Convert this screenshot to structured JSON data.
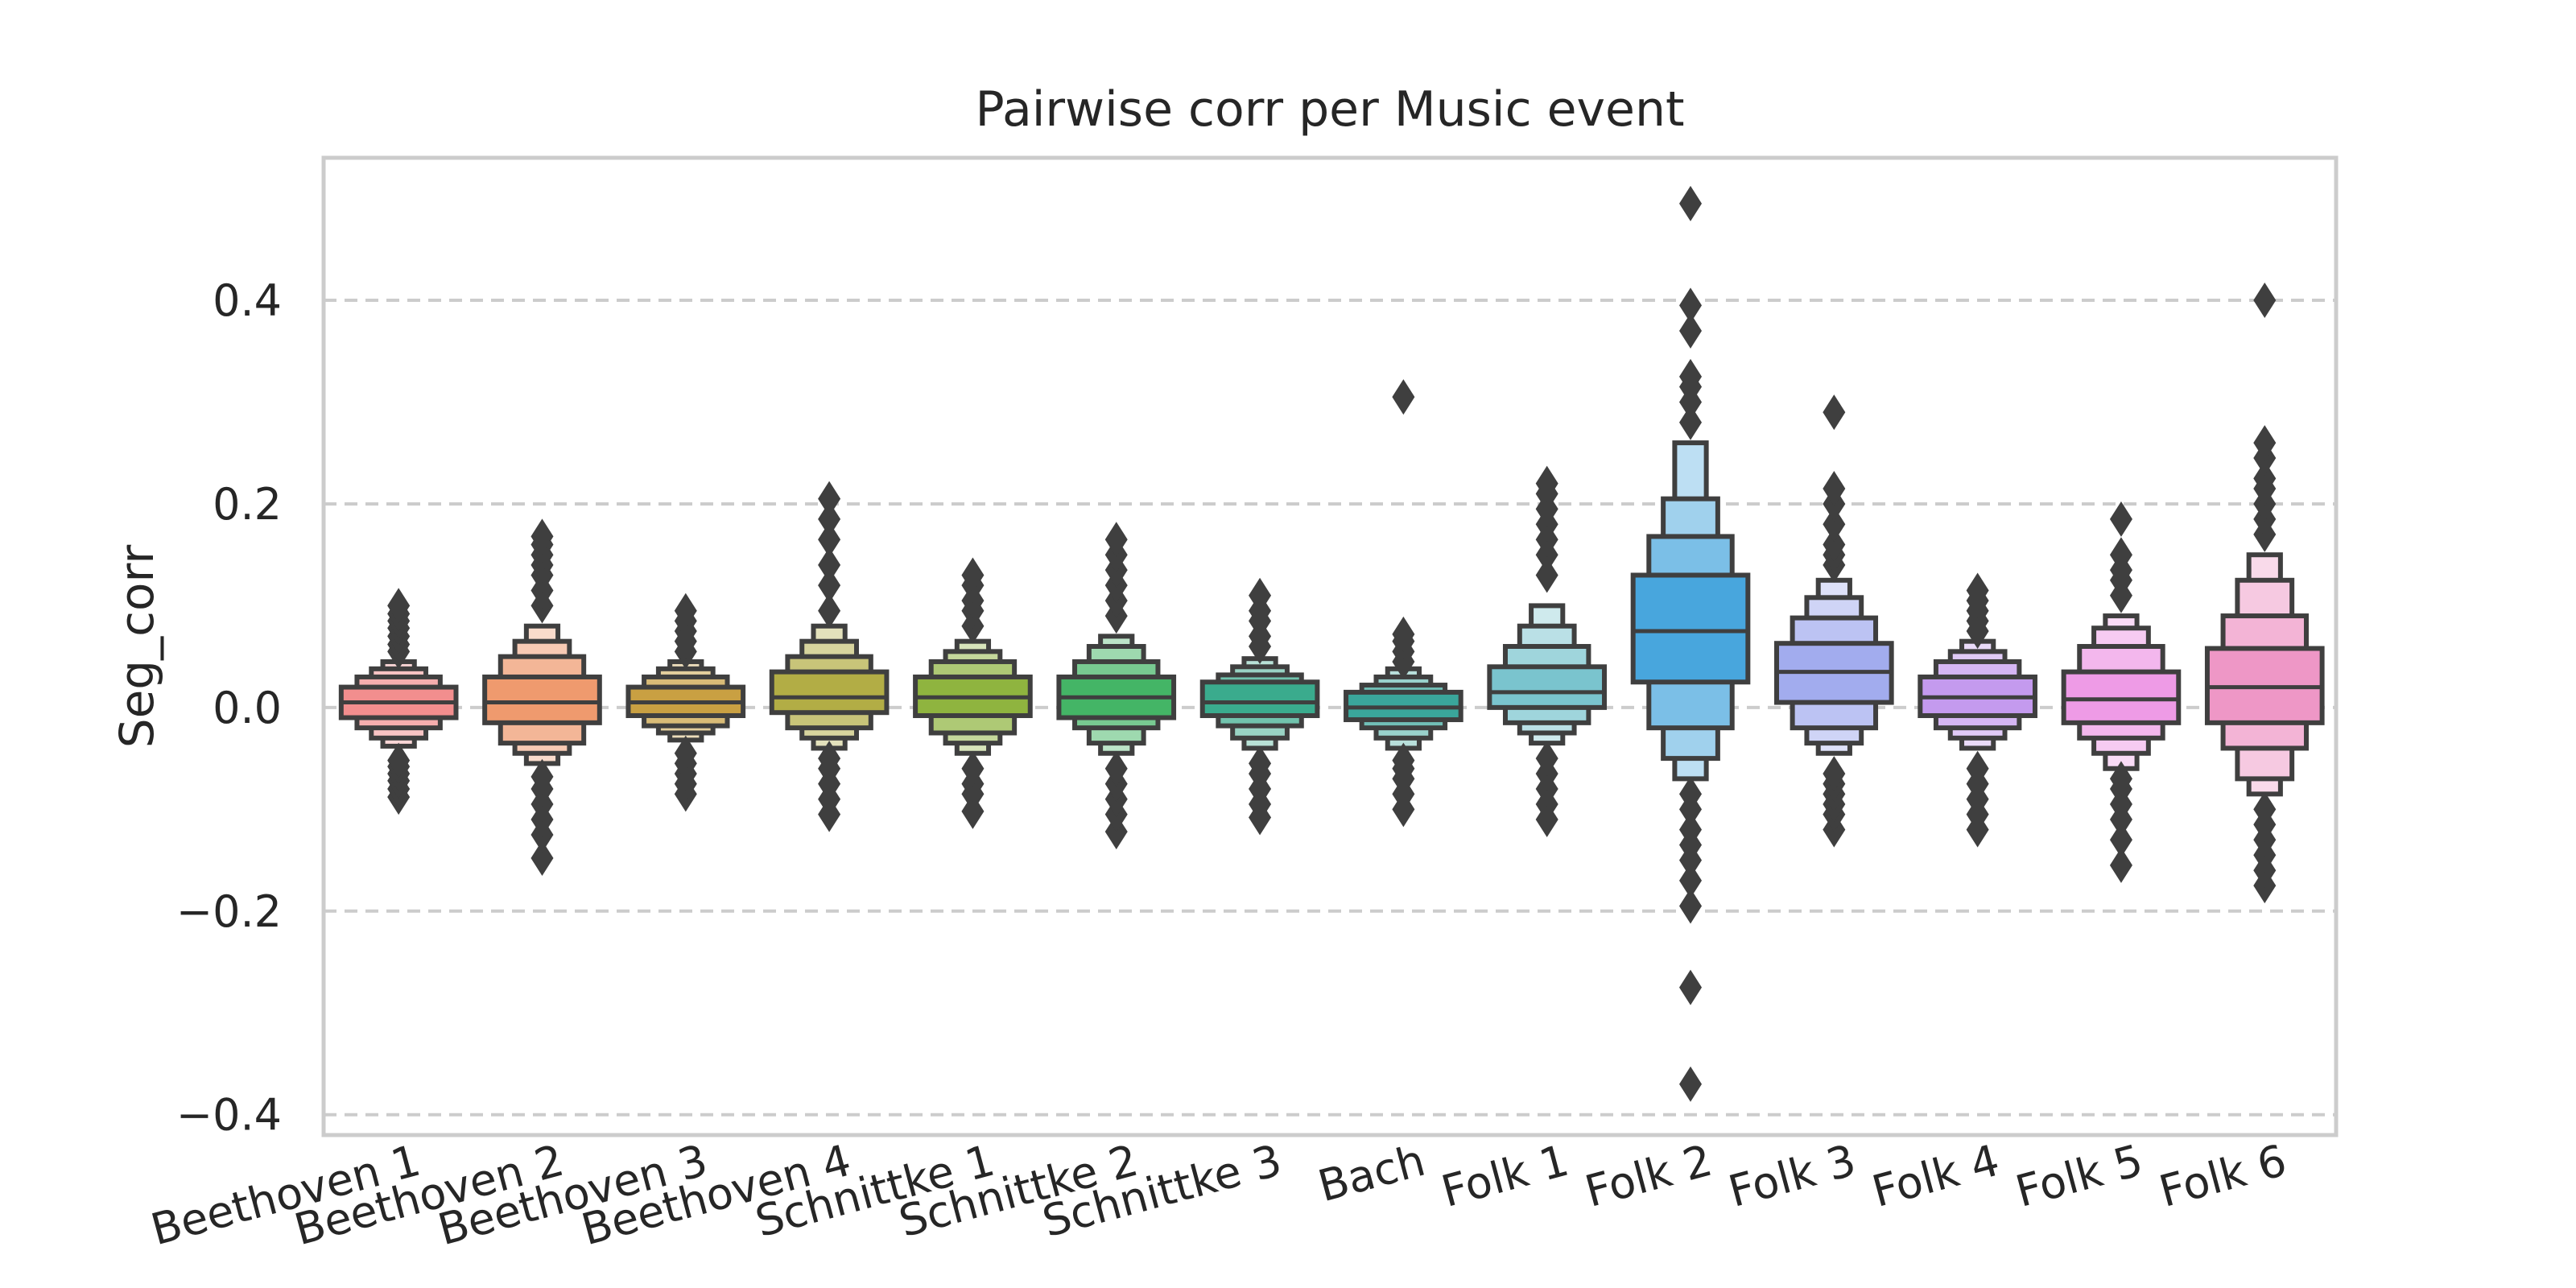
{
  "chart_data": {
    "type": "boxen",
    "title": "Pairwise corr per Music event",
    "xlabel": "",
    "ylabel": "Seg_corr",
    "ylim": [
      -0.42,
      0.54
    ],
    "yticks": [
      0.4,
      0.2,
      0.0,
      -0.2,
      -0.4
    ],
    "ytick_labels": [
      "0.4",
      "0.2",
      "0.0",
      "−0.2",
      "−0.4"
    ],
    "grid": "horizontal-dashed",
    "categories": [
      "Beethoven 1",
      "Beethoven 2",
      "Beethoven 3",
      "Beethoven 4",
      "Schnittke 1",
      "Schnittke 2",
      "Schnittke 3",
      "Bach",
      "Folk 1",
      "Folk 2",
      "Folk 3",
      "Folk 4",
      "Folk 5",
      "Folk 6"
    ],
    "colors": [
      "#f28e8e",
      "#ef9a6e",
      "#c9a042",
      "#b2ad45",
      "#8fb43f",
      "#44b566",
      "#3aab8d",
      "#3aa69b",
      "#7ac4ce",
      "#48a6dd",
      "#a2acee",
      "#c49aee",
      "#ee9be6",
      "#ee97c6"
    ],
    "series": [
      {
        "median": 0.005,
        "boxes": [
          [
            -0.01,
            0.02
          ],
          [
            -0.02,
            0.03
          ],
          [
            -0.03,
            0.038
          ],
          [
            -0.038,
            0.045
          ]
        ],
        "outliers": [
          -0.088,
          -0.08,
          -0.072,
          -0.065,
          -0.058,
          -0.052,
          0.055,
          0.062,
          0.07,
          0.078,
          0.085,
          0.092,
          0.1
        ]
      },
      {
        "median": 0.005,
        "boxes": [
          [
            -0.015,
            0.03
          ],
          [
            -0.035,
            0.05
          ],
          [
            -0.045,
            0.065
          ],
          [
            -0.055,
            0.08
          ]
        ],
        "outliers": [
          -0.148,
          -0.125,
          -0.11,
          -0.095,
          -0.08,
          -0.068,
          0.1,
          0.115,
          0.13,
          0.14,
          0.15,
          0.16,
          0.168
        ]
      },
      {
        "median": 0.005,
        "boxes": [
          [
            -0.008,
            0.02
          ],
          [
            -0.018,
            0.03
          ],
          [
            -0.025,
            0.038
          ],
          [
            -0.032,
            0.045
          ]
        ],
        "outliers": [
          -0.085,
          -0.075,
          -0.065,
          -0.055,
          -0.045,
          0.055,
          0.065,
          0.075,
          0.085,
          0.095
        ]
      },
      {
        "median": 0.01,
        "boxes": [
          [
            -0.005,
            0.035
          ],
          [
            -0.02,
            0.05
          ],
          [
            -0.03,
            0.065
          ],
          [
            -0.04,
            0.08
          ]
        ],
        "outliers": [
          -0.105,
          -0.09,
          -0.075,
          -0.06,
          -0.05,
          0.095,
          0.12,
          0.14,
          0.165,
          0.185,
          0.205
        ]
      },
      {
        "median": 0.01,
        "boxes": [
          [
            -0.008,
            0.03
          ],
          [
            -0.025,
            0.045
          ],
          [
            -0.035,
            0.055
          ],
          [
            -0.045,
            0.065
          ]
        ],
        "outliers": [
          -0.102,
          -0.085,
          -0.075,
          -0.06,
          0.08,
          0.095,
          0.105,
          0.12,
          0.13
        ]
      },
      {
        "median": 0.01,
        "boxes": [
          [
            -0.01,
            0.03
          ],
          [
            -0.02,
            0.045
          ],
          [
            -0.035,
            0.06
          ],
          [
            -0.045,
            0.07
          ]
        ],
        "outliers": [
          -0.122,
          -0.105,
          -0.09,
          -0.075,
          -0.06,
          0.09,
          0.105,
          0.12,
          0.135,
          0.15,
          0.165
        ]
      },
      {
        "median": 0.005,
        "boxes": [
          [
            -0.008,
            0.025
          ],
          [
            -0.018,
            0.032
          ],
          [
            -0.03,
            0.04
          ],
          [
            -0.04,
            0.048
          ]
        ],
        "outliers": [
          -0.108,
          -0.095,
          -0.08,
          -0.065,
          -0.055,
          0.06,
          0.07,
          0.085,
          0.095,
          0.11
        ]
      },
      {
        "median": 0.0,
        "boxes": [
          [
            -0.012,
            0.015
          ],
          [
            -0.02,
            0.022
          ],
          [
            -0.03,
            0.03
          ],
          [
            -0.04,
            0.038
          ]
        ],
        "outliers": [
          -0.1,
          -0.085,
          -0.07,
          -0.06,
          -0.052,
          0.045,
          0.055,
          0.065,
          0.072,
          0.305
        ]
      },
      {
        "median": 0.015,
        "boxes": [
          [
            0.0,
            0.04
          ],
          [
            -0.015,
            0.06
          ],
          [
            -0.025,
            0.08
          ],
          [
            -0.035,
            0.1
          ]
        ],
        "outliers": [
          -0.11,
          -0.095,
          -0.08,
          -0.065,
          -0.05,
          0.13,
          0.15,
          0.165,
          0.18,
          0.195,
          0.21,
          0.22
        ]
      },
      {
        "median": 0.075,
        "boxes": [
          [
            0.025,
            0.13
          ],
          [
            -0.02,
            0.168
          ],
          [
            -0.05,
            0.205
          ],
          [
            -0.07,
            0.26
          ]
        ],
        "outliers": [
          -0.37,
          -0.275,
          -0.195,
          -0.17,
          -0.15,
          -0.135,
          -0.12,
          -0.1,
          -0.085,
          0.28,
          0.3,
          0.315,
          0.325,
          0.37,
          0.395,
          0.495
        ]
      },
      {
        "median": 0.035,
        "boxes": [
          [
            0.005,
            0.063
          ],
          [
            -0.02,
            0.088
          ],
          [
            -0.035,
            0.108
          ],
          [
            -0.045,
            0.125
          ]
        ],
        "outliers": [
          -0.12,
          -0.105,
          -0.095,
          -0.085,
          -0.075,
          -0.065,
          0.14,
          0.15,
          0.16,
          0.18,
          0.2,
          0.215,
          0.29
        ]
      },
      {
        "median": 0.01,
        "boxes": [
          [
            -0.008,
            0.03
          ],
          [
            -0.02,
            0.045
          ],
          [
            -0.03,
            0.055
          ],
          [
            -0.04,
            0.065
          ]
        ],
        "outliers": [
          -0.12,
          -0.105,
          -0.09,
          -0.075,
          -0.06,
          0.075,
          0.085,
          0.095,
          0.105,
          0.115
        ]
      },
      {
        "median": 0.008,
        "boxes": [
          [
            -0.015,
            0.035
          ],
          [
            -0.03,
            0.06
          ],
          [
            -0.045,
            0.078
          ],
          [
            -0.06,
            0.09
          ]
        ],
        "outliers": [
          -0.155,
          -0.13,
          -0.11,
          -0.095,
          -0.08,
          -0.07,
          0.11,
          0.125,
          0.135,
          0.15,
          0.185
        ]
      },
      {
        "median": 0.02,
        "boxes": [
          [
            -0.015,
            0.058
          ],
          [
            -0.04,
            0.09
          ],
          [
            -0.07,
            0.125
          ],
          [
            -0.085,
            0.15
          ]
        ],
        "outliers": [
          -0.175,
          -0.16,
          -0.145,
          -0.13,
          -0.115,
          -0.1,
          0.17,
          0.185,
          0.2,
          0.215,
          0.225,
          0.245,
          0.26,
          0.4
        ]
      }
    ]
  }
}
